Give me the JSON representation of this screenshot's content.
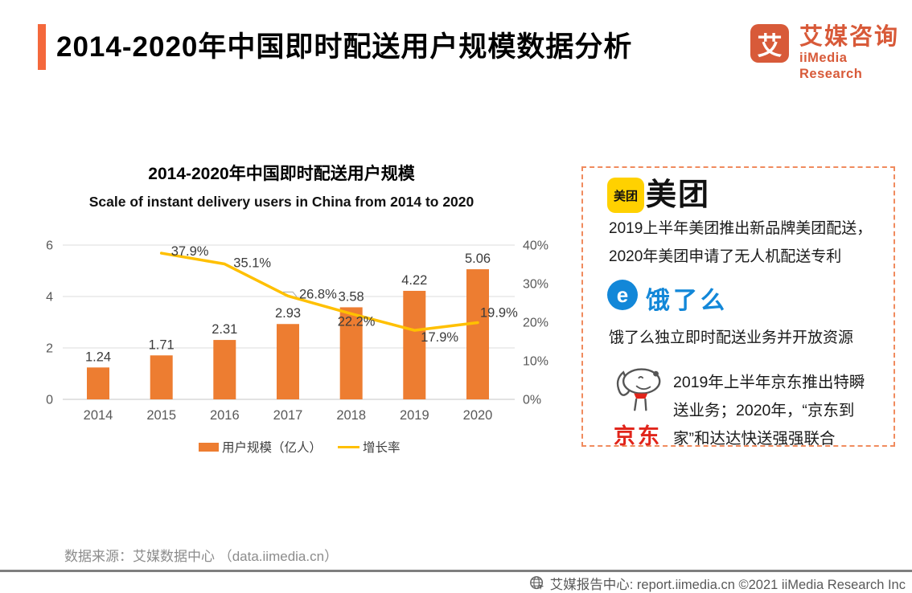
{
  "header": {
    "title": "2014-2020年中国即时配送用户规模数据分析",
    "logo": {
      "glyph": "艾",
      "brand_cn": "艾媒咨询",
      "brand_en": "iiMedia Research"
    }
  },
  "chart": {
    "title_cn": "2014-2020年中国即时配送用户规模",
    "title_en": "Scale of instant delivery users in China from 2014 to 2020"
  },
  "chart_data": {
    "type": "bar+line",
    "categories": [
      "2014",
      "2015",
      "2016",
      "2017",
      "2018",
      "2019",
      "2020"
    ],
    "series": [
      {
        "name": "用户规模（亿人）",
        "type": "bar",
        "axis": "left",
        "color": "#ED7D31",
        "values": [
          1.24,
          1.71,
          2.31,
          2.93,
          3.58,
          4.22,
          5.06
        ],
        "labels": [
          "1.24",
          "1.71",
          "2.31",
          "2.93",
          "3.58",
          "4.22",
          "5.06"
        ]
      },
      {
        "name": "增长率",
        "type": "line",
        "axis": "right",
        "color": "#FFC000",
        "values": [
          null,
          37.9,
          35.1,
          26.8,
          22.2,
          17.9,
          19.9
        ],
        "labels": [
          "",
          "37.9%",
          "35.1%",
          "26.8%",
          "22.2%",
          "17.9%",
          "19.9%"
        ]
      }
    ],
    "left_axis": {
      "ticks": [
        0,
        2,
        4,
        6
      ],
      "range": [
        0,
        6
      ]
    },
    "right_axis": {
      "tick_labels": [
        "0%",
        "10%",
        "20%",
        "30%",
        "40%"
      ],
      "tick_values": [
        0,
        10,
        20,
        30,
        40
      ],
      "range": [
        0,
        40
      ]
    },
    "legend": [
      "用户规模（亿人）",
      "增长率"
    ],
    "grid": true,
    "legend_position": "bottom"
  },
  "panel": {
    "meituan": {
      "logo_text": "美团",
      "name": "美团",
      "lines": [
        "2019上半年美团推出新品牌美团配送，",
        "2020年美团申请了无人机配送专利"
      ]
    },
    "eleme": {
      "logo_glyph": "e",
      "name": "饿了么",
      "lines": [
        "饿了么独立即时配送业务并开放资源"
      ]
    },
    "jd": {
      "name": "京东",
      "lines": [
        "2019年上半年京东推出特瞬",
        "送业务；2020年，“京东到",
        "家”和达达快送强强联合"
      ]
    }
  },
  "source": "数据来源：艾媒数据中心 （data.iimedia.cn）",
  "footer": "艾媒报告中心: report.iimedia.cn  ©2021  iiMedia Research Inc",
  "colors": {
    "accent": "#F4683C",
    "brand": "#D85A39",
    "bar": "#ED7D31",
    "line": "#FFC000",
    "meituan_yellow": "#FFD100",
    "eleme_blue": "#1287D8",
    "jd_red": "#E1251B",
    "panel_border": "#F08B5E"
  }
}
